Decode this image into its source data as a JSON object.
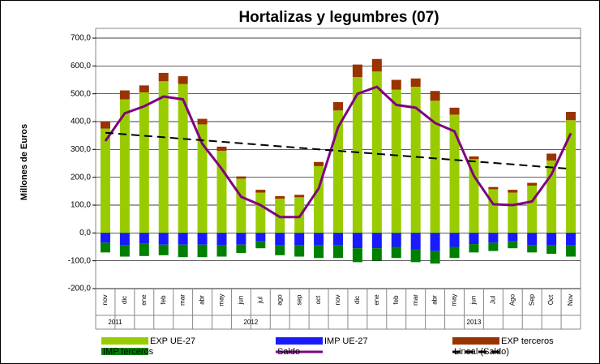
{
  "chart_data": {
    "type": "bar",
    "title": "Hortalizas y legumbres (07)",
    "y_label": "Millones de Euros",
    "categories": [
      "nov",
      "dic",
      "ene",
      "feb",
      "mar",
      "abr",
      "may",
      "jun",
      "jul",
      "ago",
      "sep",
      "oct",
      "nov",
      "dic",
      "ene",
      "feb",
      "mar",
      "abr",
      "may",
      "jun",
      "Jul",
      "Ago",
      "Sep",
      "Oct",
      "Nov"
    ],
    "year_groups": [
      {
        "label": "2011",
        "count": 2
      },
      {
        "label": "2012",
        "count": 12
      },
      {
        "label": "2013",
        "count": 11
      }
    ],
    "series": [
      {
        "name": "EXP UE-27",
        "color": "#99cc00",
        "values": [
          375,
          480,
          505,
          545,
          535,
          390,
          295,
          195,
          145,
          123,
          128,
          240,
          440,
          560,
          580,
          515,
          525,
          475,
          425,
          265,
          157,
          145,
          170,
          260,
          405
        ]
      },
      {
        "name": "EXP terceros",
        "color": "#993300",
        "values": [
          25,
          32,
          25,
          30,
          28,
          20,
          15,
          8,
          10,
          9,
          9,
          15,
          30,
          45,
          45,
          35,
          30,
          35,
          25,
          10,
          8,
          10,
          10,
          25,
          30
        ]
      },
      {
        "name": "IMP UE-27",
        "color": "#1a1aff",
        "values": [
          -35,
          -45,
          -38,
          -42,
          -42,
          -42,
          -45,
          -42,
          -30,
          -45,
          -45,
          -45,
          -45,
          -55,
          -55,
          -50,
          -60,
          -65,
          -50,
          -40,
          -35,
          -30,
          -45,
          -45,
          -45
        ]
      },
      {
        "name": "IMP terceros",
        "color": "#008000",
        "values": [
          -35,
          -40,
          -45,
          -38,
          -45,
          -45,
          -40,
          -30,
          -25,
          -35,
          -40,
          -45,
          -45,
          -50,
          -45,
          -40,
          -45,
          -45,
          -40,
          -30,
          -30,
          -25,
          -25,
          -30,
          -40
        ]
      },
      {
        "name": "Saldo",
        "type": "line",
        "color": "#800080",
        "values": [
          330,
          430,
          455,
          490,
          480,
          320,
          230,
          130,
          100,
          57,
          57,
          160,
          380,
          500,
          525,
          460,
          450,
          395,
          365,
          205,
          103,
          100,
          113,
          210,
          358
        ]
      },
      {
        "name": "Lineal (Saldo)",
        "type": "line",
        "dashed": true,
        "color": "#000000",
        "values": [
          360,
          354.6,
          349.2,
          343.8,
          338.3,
          332.9,
          327.5,
          322.1,
          316.7,
          311.3,
          305.8,
          300.4,
          295,
          289.6,
          284.2,
          278.8,
          273.3,
          267.9,
          262.5,
          257.1,
          251.7,
          246.3,
          240.8,
          235.4,
          230
        ]
      }
    ],
    "ylim": [
      -200,
      700
    ],
    "yticks": [
      {
        "value": -200,
        "label": "-200,0"
      },
      {
        "value": -100,
        "label": "-100,0"
      },
      {
        "value": 0,
        "label": "0,0"
      },
      {
        "value": 100,
        "label": "100,0"
      },
      {
        "value": 200,
        "label": "200,0"
      },
      {
        "value": 300,
        "label": "300,0"
      },
      {
        "value": 400,
        "label": "400,0"
      },
      {
        "value": 500,
        "label": "500,0"
      },
      {
        "value": 600,
        "label": "600,0"
      },
      {
        "value": 700,
        "label": "700,0"
      }
    ],
    "grid": true
  }
}
